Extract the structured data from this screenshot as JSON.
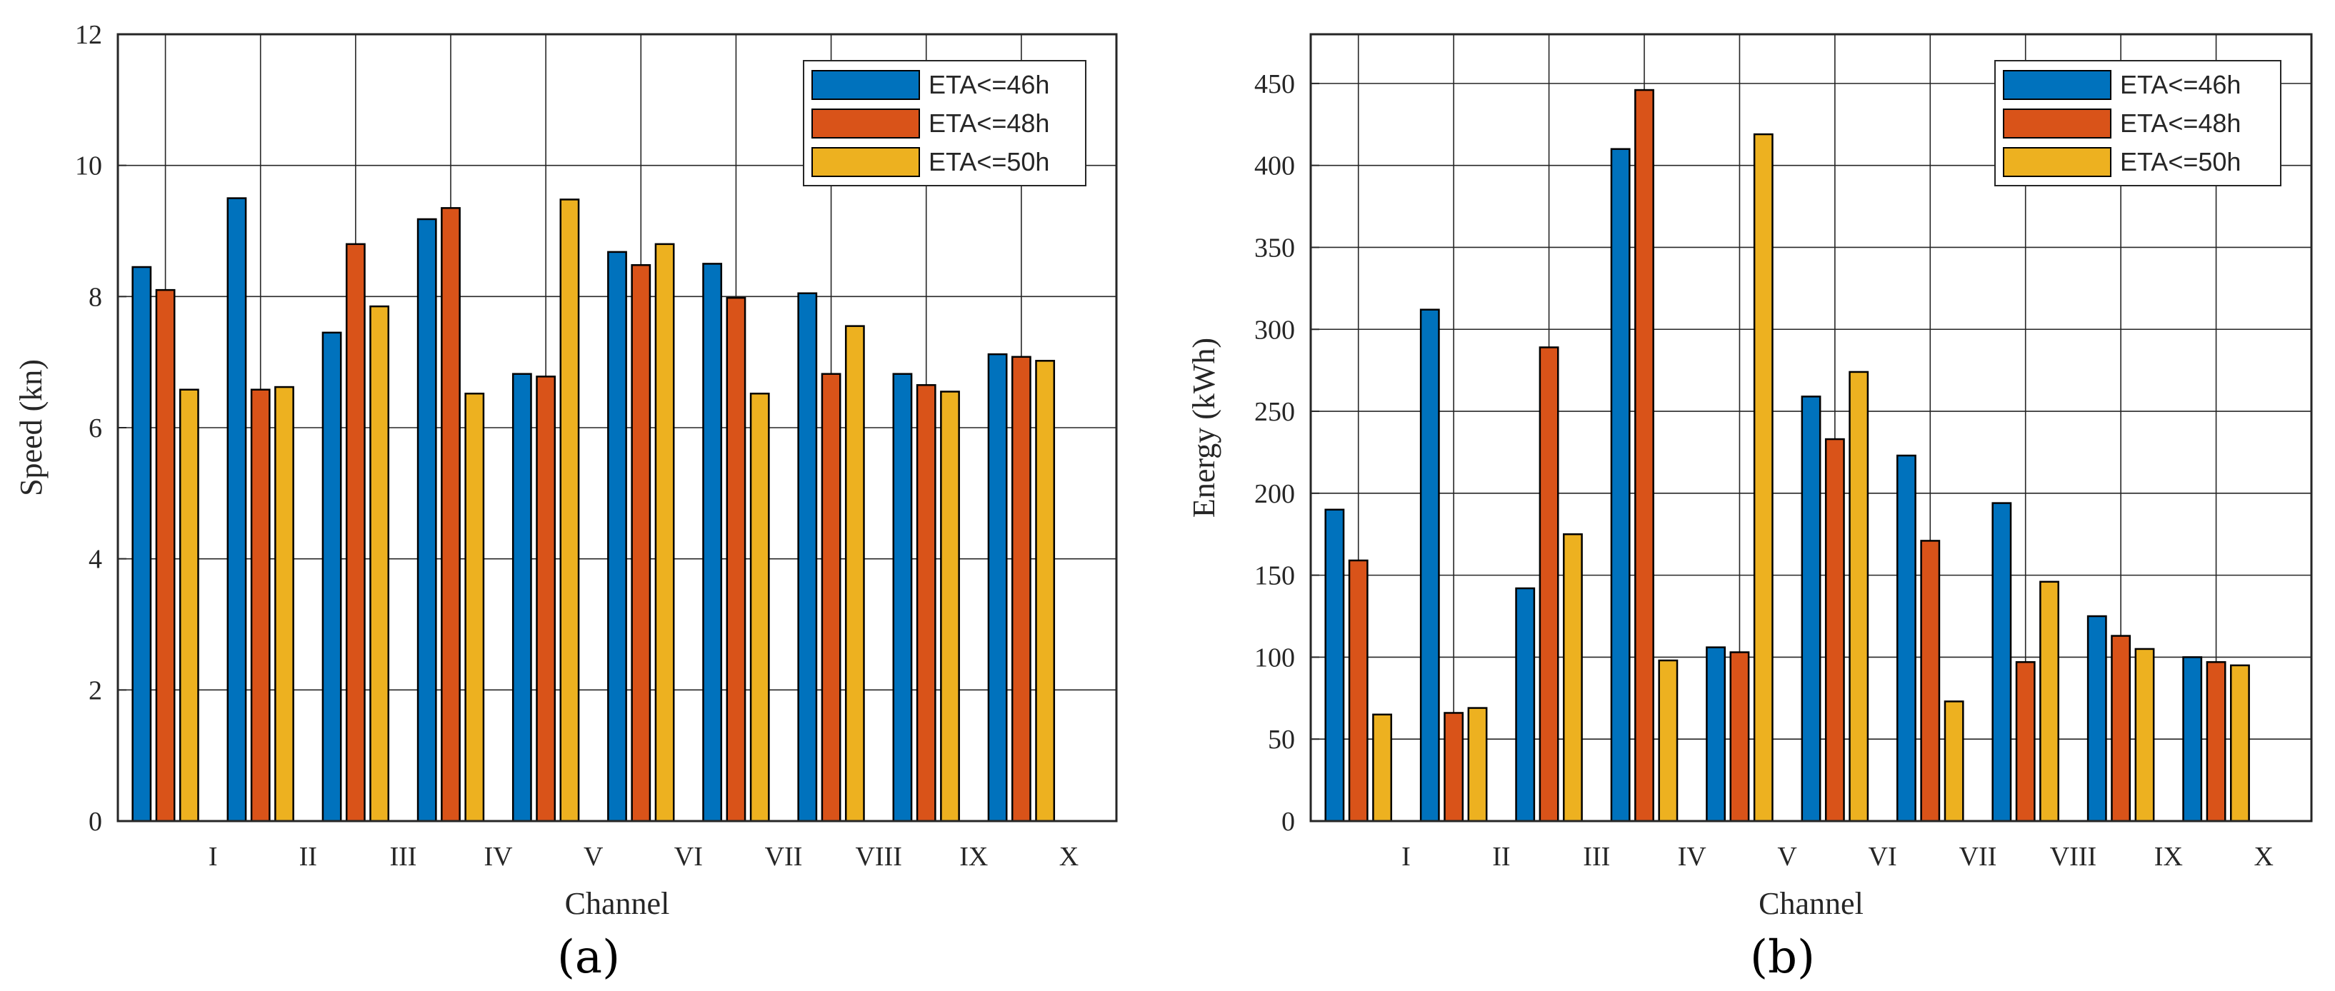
{
  "chart_data": [
    {
      "type": "bar",
      "panel_label": "(a)",
      "title": "",
      "xlabel": "Channel",
      "ylabel": "Speed (kn)",
      "categories": [
        "I",
        "II",
        "III",
        "IV",
        "V",
        "VI",
        "VII",
        "VIII",
        "IX",
        "X"
      ],
      "ylim": [
        0,
        12
      ],
      "yticks": [
        0,
        2,
        4,
        6,
        8,
        10,
        12
      ],
      "grid": true,
      "legend_position": "top-right",
      "series": [
        {
          "name": "ETA<=46h",
          "color": "#0072BD",
          "values": [
            8.45,
            9.5,
            7.45,
            9.18,
            6.82,
            8.68,
            8.5,
            8.05,
            6.82,
            7.12
          ]
        },
        {
          "name": "ETA<=48h",
          "color": "#D95319",
          "values": [
            8.1,
            6.58,
            8.8,
            9.35,
            6.78,
            8.48,
            7.98,
            6.82,
            6.65,
            7.08
          ]
        },
        {
          "name": "ETA<=50h",
          "color": "#EDB120",
          "values": [
            6.58,
            6.62,
            7.85,
            6.52,
            9.48,
            8.8,
            6.52,
            7.55,
            6.55,
            7.02
          ]
        }
      ]
    },
    {
      "type": "bar",
      "panel_label": "(b)",
      "title": "",
      "xlabel": "Channel",
      "ylabel": "Energy (kWh)",
      "categories": [
        "I",
        "II",
        "III",
        "IV",
        "V",
        "VI",
        "VII",
        "VIII",
        "IX",
        "X"
      ],
      "ylim": [
        0,
        480
      ],
      "yticks": [
        0,
        50,
        100,
        150,
        200,
        250,
        300,
        350,
        400,
        450
      ],
      "grid": true,
      "legend_position": "top-right",
      "series": [
        {
          "name": "ETA<=46h",
          "color": "#0072BD",
          "values": [
            190,
            312,
            142,
            410,
            106,
            259,
            223,
            194,
            125,
            100
          ]
        },
        {
          "name": "ETA<=48h",
          "color": "#D95319",
          "values": [
            159,
            66,
            289,
            446,
            103,
            233,
            171,
            97,
            113,
            97
          ]
        },
        {
          "name": "ETA<=50h",
          "color": "#EDB120",
          "values": [
            65,
            69,
            175,
            98,
            419,
            274,
            73,
            146,
            105,
            95
          ]
        }
      ]
    }
  ]
}
